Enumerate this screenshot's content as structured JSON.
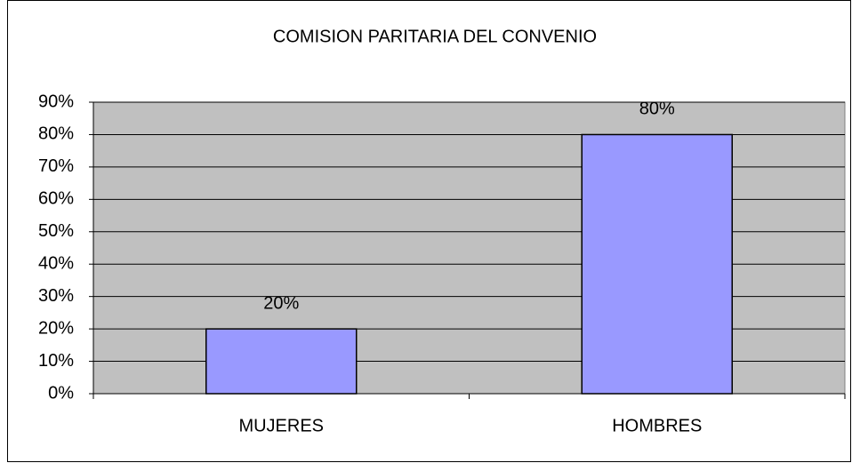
{
  "chart_data": {
    "type": "bar",
    "title": "COMISION PARITARIA DEL CONVENIO",
    "categories": [
      "MUJERES",
      "HOMBRES"
    ],
    "values": [
      20,
      80
    ],
    "value_labels": [
      "20%",
      "80%"
    ],
    "color": "#9999ff",
    "plot_background": "#c0c0c0",
    "ylim": [
      0,
      90
    ],
    "yticks": [
      {
        "value": 0,
        "label": "0%"
      },
      {
        "value": 10,
        "label": "10%"
      },
      {
        "value": 20,
        "label": "20%"
      },
      {
        "value": 30,
        "label": "30%"
      },
      {
        "value": 40,
        "label": "40%"
      },
      {
        "value": 50,
        "label": "50%"
      },
      {
        "value": 60,
        "label": "60%"
      },
      {
        "value": 70,
        "label": "70%"
      },
      {
        "value": 80,
        "label": "80%"
      },
      {
        "value": 90,
        "label": "90%"
      }
    ],
    "grid": true
  }
}
